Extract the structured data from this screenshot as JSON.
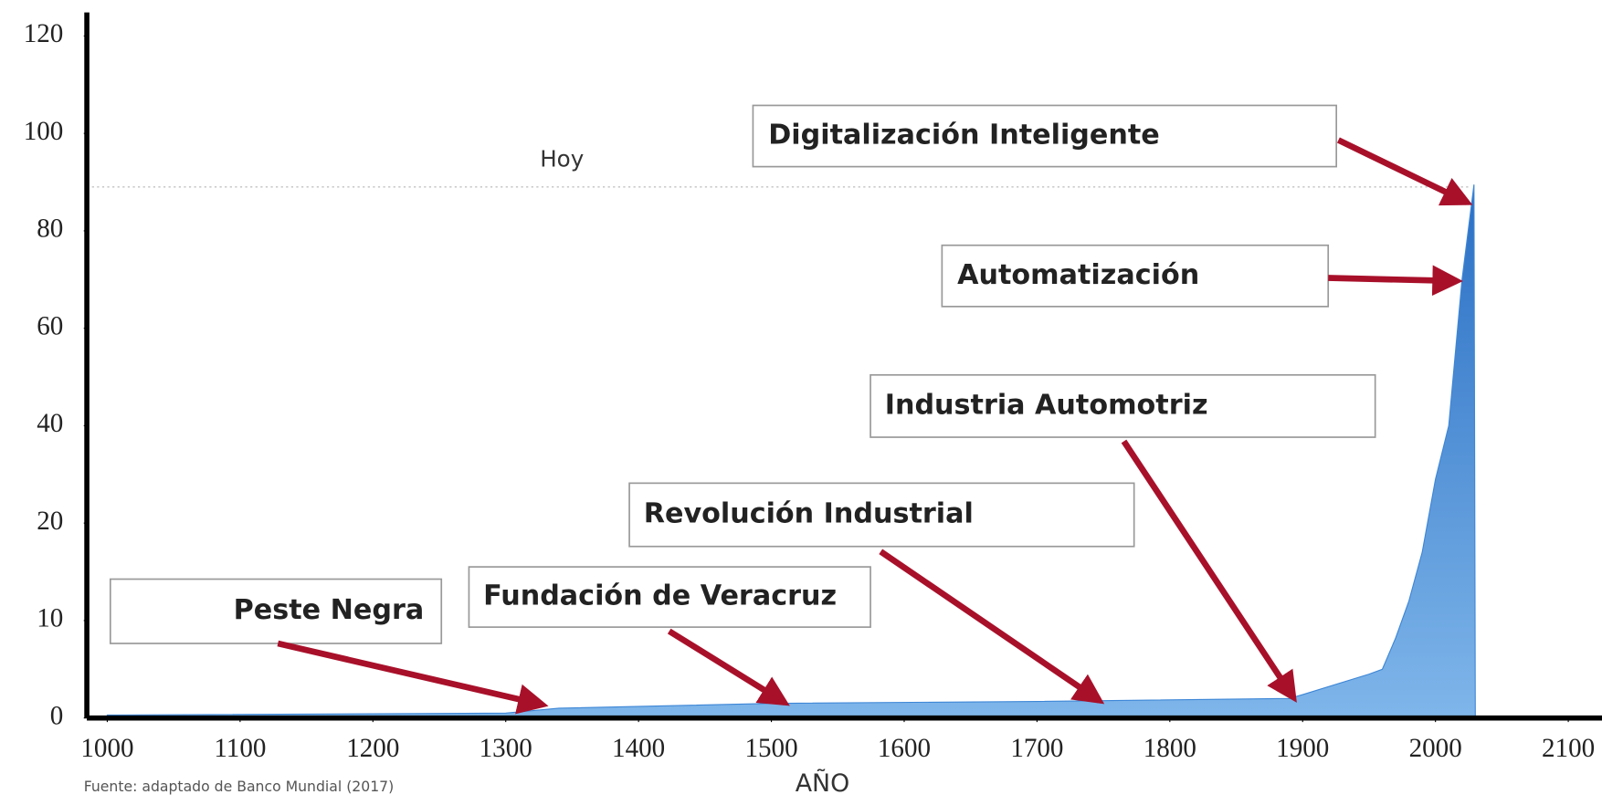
{
  "chart_data": {
    "type": "area",
    "x_label": "AÑO",
    "source": "Fuente: adaptado de Banco Mundial (2017)",
    "xlim": [
      1000,
      2100
    ],
    "xticks": [
      1000,
      1100,
      1200,
      1300,
      1400,
      1500,
      1600,
      1700,
      1800,
      1900,
      2000,
      2100
    ],
    "ylim": [
      0,
      120
    ],
    "yticks": [
      0,
      10,
      20,
      40,
      60,
      80,
      100,
      120
    ],
    "series": [
      {
        "color": "#3d86d6",
        "x": [
          1000,
          1300,
          1340,
          1500,
          1700,
          1890,
          1900,
          1950,
          1960,
          1970,
          1980,
          1990,
          2000,
          2010,
          2020,
          2029,
          2030
        ],
        "values": [
          0.3,
          0.5,
          1,
          1.5,
          1.7,
          2,
          2.4,
          4.5,
          5,
          8.2,
          12,
          17,
          29,
          40,
          70,
          89.5,
          0
        ]
      }
    ],
    "reference_line": {
      "label": "Hoy",
      "value": 89
    },
    "annotations": [
      {
        "text": "Digitalización Inteligente"
      },
      {
        "text": "Automatización"
      },
      {
        "text": "Industria Automotriz"
      },
      {
        "text": "Revolución Industrial"
      },
      {
        "text": "Fundación de Veracruz"
      },
      {
        "text": "Peste Negra"
      }
    ]
  }
}
